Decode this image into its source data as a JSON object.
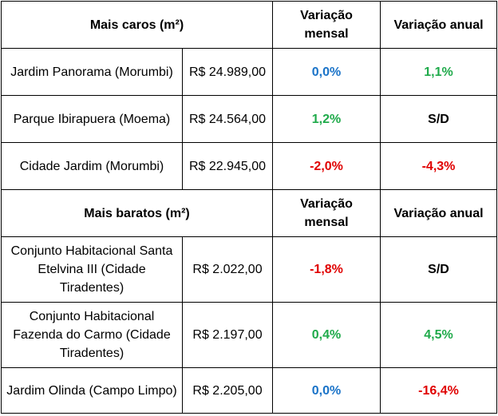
{
  "expensive": {
    "header": "Mais caros (m²)",
    "col_monthly": "Variação mensal",
    "col_annual": "Variação anual",
    "rows": [
      {
        "name": "Jardim Panorama (Morumbi)",
        "price": "R$ 24.989,00",
        "monthly": "0,0%",
        "annual": "1,1%"
      },
      {
        "name": "Parque Ibirapuera (Moema)",
        "price": "R$ 24.564,00",
        "monthly": "1,2%",
        "annual": "S/D"
      },
      {
        "name": "Cidade Jardim (Morumbi)",
        "price": "R$ 22.945,00",
        "monthly": "-2,0%",
        "annual": "-4,3%"
      }
    ]
  },
  "cheap": {
    "header": "Mais baratos (m²)",
    "col_monthly": "Variação mensal",
    "col_annual": "Variação anual",
    "rows": [
      {
        "name": "Conjunto Habitacional Santa Etelvina III (Cidade Tiradentes)",
        "price": "R$ 2.022,00",
        "monthly": "-1,8%",
        "annual": "S/D"
      },
      {
        "name": "Conjunto Habitacional Fazenda do Carmo (Cidade Tiradentes)",
        "price": "R$ 2.197,00",
        "monthly": "0,4%",
        "annual": "4,5%"
      },
      {
        "name": "Jardim Olinda (Campo Limpo)",
        "price": "R$ 2.205,00",
        "monthly": "0,0%",
        "annual": "-16,4%"
      }
    ]
  },
  "colors": {
    "positive": "#1faa4a",
    "negative": "#e00000",
    "zero": "#1a73c8",
    "none": "#000000"
  }
}
